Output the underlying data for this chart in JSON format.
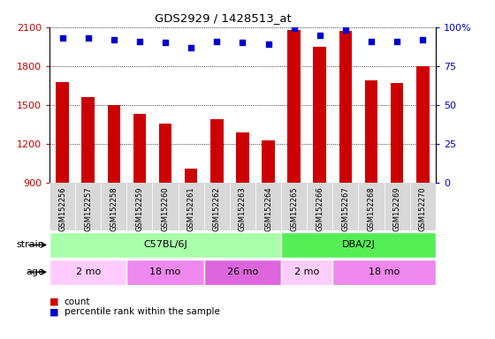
{
  "title": "GDS2929 / 1428513_at",
  "samples": [
    "GSM152256",
    "GSM152257",
    "GSM152258",
    "GSM152259",
    "GSM152260",
    "GSM152261",
    "GSM152262",
    "GSM152263",
    "GSM152264",
    "GSM152265",
    "GSM152266",
    "GSM152267",
    "GSM152268",
    "GSM152269",
    "GSM152270"
  ],
  "counts": [
    1680,
    1560,
    1500,
    1430,
    1360,
    1010,
    1390,
    1290,
    1230,
    2080,
    1950,
    2070,
    1690,
    1670,
    1800
  ],
  "percentile_ranks": [
    93,
    93,
    92,
    91,
    90,
    87,
    91,
    90,
    89,
    99,
    95,
    98,
    91,
    91,
    92
  ],
  "bar_color": "#cc0000",
  "dot_color": "#0000cc",
  "ylim_left": [
    900,
    2100
  ],
  "ylim_right": [
    0,
    100
  ],
  "yticks_left": [
    900,
    1200,
    1500,
    1800,
    2100
  ],
  "yticks_right": [
    0,
    25,
    50,
    75,
    100
  ],
  "strain_groups": [
    {
      "label": "C57BL/6J",
      "start": 0,
      "end": 9,
      "color": "#aaffaa"
    },
    {
      "label": "DBA/2J",
      "start": 9,
      "end": 15,
      "color": "#55ee55"
    }
  ],
  "age_groups": [
    {
      "label": "2 mo",
      "start": 0,
      "end": 3,
      "color": "#ffccff"
    },
    {
      "label": "18 mo",
      "start": 3,
      "end": 6,
      "color": "#ee88ee"
    },
    {
      "label": "26 mo",
      "start": 6,
      "end": 9,
      "color": "#dd66dd"
    },
    {
      "label": "2 mo",
      "start": 9,
      "end": 11,
      "color": "#ffccff"
    },
    {
      "label": "18 mo",
      "start": 11,
      "end": 15,
      "color": "#ee88ee"
    }
  ],
  "strain_label": "strain",
  "age_label": "age",
  "legend_count_label": "count",
  "legend_pct_label": "percentile rank within the sample",
  "plot_bg": "#ffffff",
  "grid_color": "#333333",
  "label_color_left": "#cc0000",
  "label_color_right": "#0000cc",
  "tick_gray": "#888888"
}
